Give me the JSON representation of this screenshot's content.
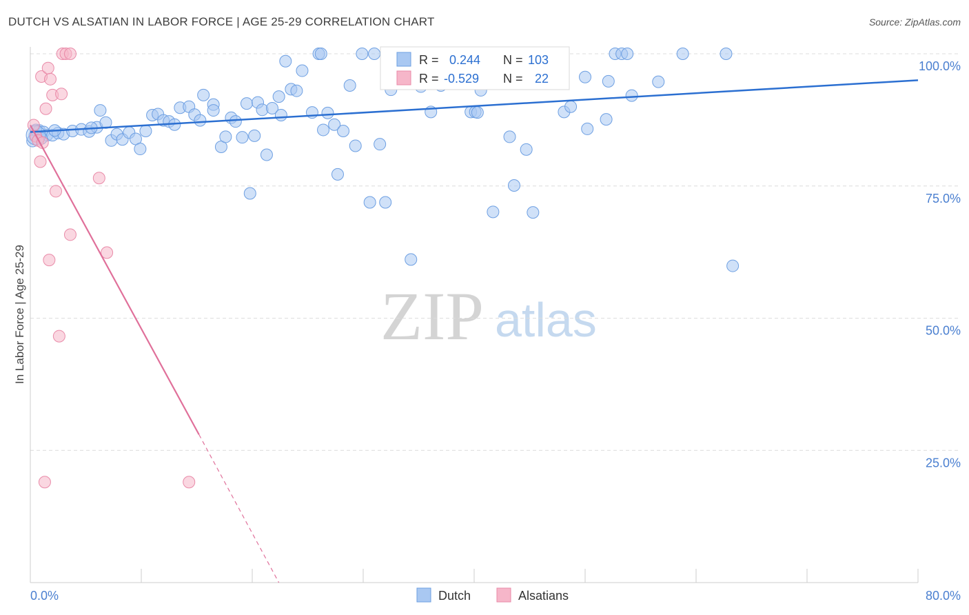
{
  "title": "DUTCH VS ALSATIAN IN LABOR FORCE | AGE 25-29 CORRELATION CHART",
  "source": "Source: ZipAtlas.com",
  "watermark": {
    "zip": "ZIP",
    "atlas": "atlas"
  },
  "colors": {
    "dutch_fill": "#a9c8f2",
    "dutch_stroke": "#6d9fe2",
    "dutch_line": "#2b6fd1",
    "alsatian_fill": "#f6b6c9",
    "alsatian_stroke": "#e98aa8",
    "alsatian_line": "#e0709a",
    "tick_text": "#4a7fd0",
    "grid": "#dcdcdc"
  },
  "stats_box": {
    "rows": [
      {
        "r_label": "R =",
        "r_value": "0.244",
        "n_label": "N =",
        "n_value": "103"
      },
      {
        "r_label": "R =",
        "r_value": "-0.529",
        "n_label": "N =",
        "n_value": "22"
      }
    ]
  },
  "chart_data": {
    "type": "scatter",
    "title": "DUTCH VS ALSATIAN IN LABOR FORCE | AGE 25-29 CORRELATION CHART",
    "xlabel": "",
    "ylabel": "In Labor Force | Age 25-29",
    "xlim": [
      0,
      80
    ],
    "ylim": [
      0,
      100
    ],
    "x_tick_labels": [
      "0.0%",
      "80.0%"
    ],
    "y_tick_labels": [
      "100.0%",
      "75.0%",
      "50.0%",
      "25.0%"
    ],
    "y_ticks": [
      100,
      75,
      50,
      25
    ],
    "grid": true,
    "legend_position": "bottom-center",
    "series": [
      {
        "name": "Dutch",
        "r": 0.244,
        "n": 103,
        "trend": {
          "x": [
            0,
            80
          ],
          "y": [
            85.2,
            95.0
          ]
        },
        "points": [
          [
            0.4,
            84.5
          ],
          [
            0.8,
            85.5
          ],
          [
            1.2,
            85.2
          ],
          [
            1.5,
            84.6
          ],
          [
            2.0,
            84.6
          ],
          [
            2.5,
            85.0
          ],
          [
            3.0,
            84.8
          ],
          [
            3.8,
            85.4
          ],
          [
            4.6,
            85.7
          ],
          [
            5.3,
            85.3
          ],
          [
            6.0,
            86.1
          ],
          [
            6.3,
            89.3
          ],
          [
            6.8,
            87.0
          ],
          [
            7.3,
            83.6
          ],
          [
            7.8,
            84.8
          ],
          [
            8.3,
            83.8
          ],
          [
            8.9,
            85.1
          ],
          [
            9.5,
            83.9
          ],
          [
            9.9,
            82.0
          ],
          [
            10.4,
            85.4
          ],
          [
            11.0,
            88.4
          ],
          [
            11.5,
            88.6
          ],
          [
            12.0,
            87.4
          ],
          [
            12.5,
            87.2
          ],
          [
            13.0,
            86.6
          ],
          [
            13.5,
            89.8
          ],
          [
            14.3,
            90.0
          ],
          [
            14.8,
            88.5
          ],
          [
            15.3,
            87.4
          ],
          [
            15.6,
            92.2
          ],
          [
            16.5,
            90.4
          ],
          [
            16.5,
            89.3
          ],
          [
            17.2,
            82.4
          ],
          [
            17.6,
            84.3
          ],
          [
            18.1,
            87.9
          ],
          [
            18.5,
            87.2
          ],
          [
            19.1,
            84.2
          ],
          [
            19.5,
            90.6
          ],
          [
            19.8,
            73.6
          ],
          [
            20.5,
            90.8
          ],
          [
            20.9,
            89.4
          ],
          [
            21.3,
            80.9
          ],
          [
            21.8,
            89.7
          ],
          [
            22.4,
            91.9
          ],
          [
            22.6,
            88.4
          ],
          [
            23.0,
            98.6
          ],
          [
            23.5,
            93.3
          ],
          [
            24.0,
            93.0
          ],
          [
            24.5,
            96.8
          ],
          [
            25.4,
            88.9
          ],
          [
            26.0,
            100.0
          ],
          [
            26.4,
            85.6
          ],
          [
            26.8,
            88.8
          ],
          [
            27.4,
            86.6
          ],
          [
            27.7,
            77.2
          ],
          [
            28.2,
            85.4
          ],
          [
            28.8,
            94.0
          ],
          [
            29.3,
            82.6
          ],
          [
            29.9,
            100.0
          ],
          [
            30.6,
            71.9
          ],
          [
            31.0,
            100.0
          ],
          [
            31.5,
            82.9
          ],
          [
            32.0,
            71.9
          ],
          [
            32.5,
            93.2
          ],
          [
            32.6,
            100.0
          ],
          [
            33.0,
            95.5
          ],
          [
            34.3,
            61.1
          ],
          [
            34.6,
            100.0
          ],
          [
            35.2,
            93.8
          ],
          [
            36.1,
            89.0
          ],
          [
            37.0,
            94.0
          ],
          [
            37.5,
            100.0
          ],
          [
            39.7,
            89.0
          ],
          [
            40.1,
            89.0
          ],
          [
            40.6,
            93.1
          ],
          [
            41.7,
            70.1
          ],
          [
            43.2,
            84.3
          ],
          [
            43.6,
            75.1
          ],
          [
            44.7,
            81.9
          ],
          [
            45.3,
            70.0
          ],
          [
            48.1,
            89.0
          ],
          [
            48.7,
            90.0
          ],
          [
            50.0,
            95.6
          ],
          [
            50.2,
            85.8
          ],
          [
            51.9,
            87.6
          ],
          [
            52.1,
            94.8
          ],
          [
            52.7,
            100.0
          ],
          [
            53.3,
            100.0
          ],
          [
            53.8,
            100.0
          ],
          [
            54.2,
            92.1
          ],
          [
            56.6,
            94.7
          ],
          [
            58.8,
            100.0
          ],
          [
            62.7,
            100.0
          ],
          [
            63.3,
            59.9
          ],
          [
            0.5,
            85.6
          ],
          [
            1.0,
            84.0
          ],
          [
            2.2,
            85.5
          ],
          [
            5.5,
            86.0
          ],
          [
            20.2,
            84.5
          ],
          [
            26.2,
            100.0
          ],
          [
            38.0,
            100.0
          ],
          [
            40.3,
            88.9
          ],
          [
            0.2,
            83.5
          ]
        ]
      },
      {
        "name": "Alsatians",
        "r": -0.529,
        "n": 22,
        "trend": {
          "x": [
            0,
            15.2
          ],
          "y": [
            86.5,
            28.0
          ]
        },
        "trend_dashed": {
          "x": [
            15.2,
            22.4
          ],
          "y": [
            28.0,
            0
          ]
        },
        "points": [
          [
            0.3,
            86.5
          ],
          [
            0.5,
            84.4
          ],
          [
            0.7,
            83.6
          ],
          [
            0.9,
            79.6
          ],
          [
            1.0,
            95.7
          ],
          [
            1.1,
            83.2
          ],
          [
            1.4,
            89.6
          ],
          [
            1.6,
            97.3
          ],
          [
            1.7,
            61.0
          ],
          [
            1.8,
            95.2
          ],
          [
            2.0,
            92.2
          ],
          [
            2.3,
            74.0
          ],
          [
            2.6,
            46.6
          ],
          [
            2.8,
            92.4
          ],
          [
            2.9,
            100.0
          ],
          [
            3.2,
            100.0
          ],
          [
            3.6,
            100.0
          ],
          [
            3.6,
            65.8
          ],
          [
            6.2,
            76.5
          ],
          [
            6.9,
            62.4
          ],
          [
            1.3,
            19.0
          ],
          [
            14.3,
            19.0
          ]
        ]
      }
    ]
  },
  "legend": {
    "items": [
      {
        "label": "Dutch"
      },
      {
        "label": "Alsatians"
      }
    ]
  }
}
